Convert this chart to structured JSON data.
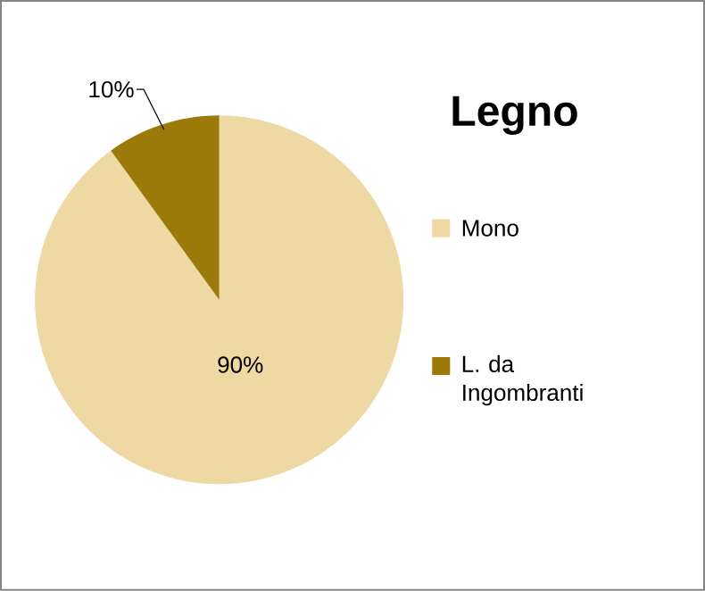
{
  "chart_data": {
    "type": "pie",
    "title": "Legno",
    "categories": [
      "Mono",
      "L. da Ingombranti"
    ],
    "values": [
      90,
      10
    ],
    "value_labels": [
      "90%",
      "10%"
    ],
    "colors": [
      "#eed9a4",
      "#9c7a0a"
    ],
    "legend": "right"
  }
}
